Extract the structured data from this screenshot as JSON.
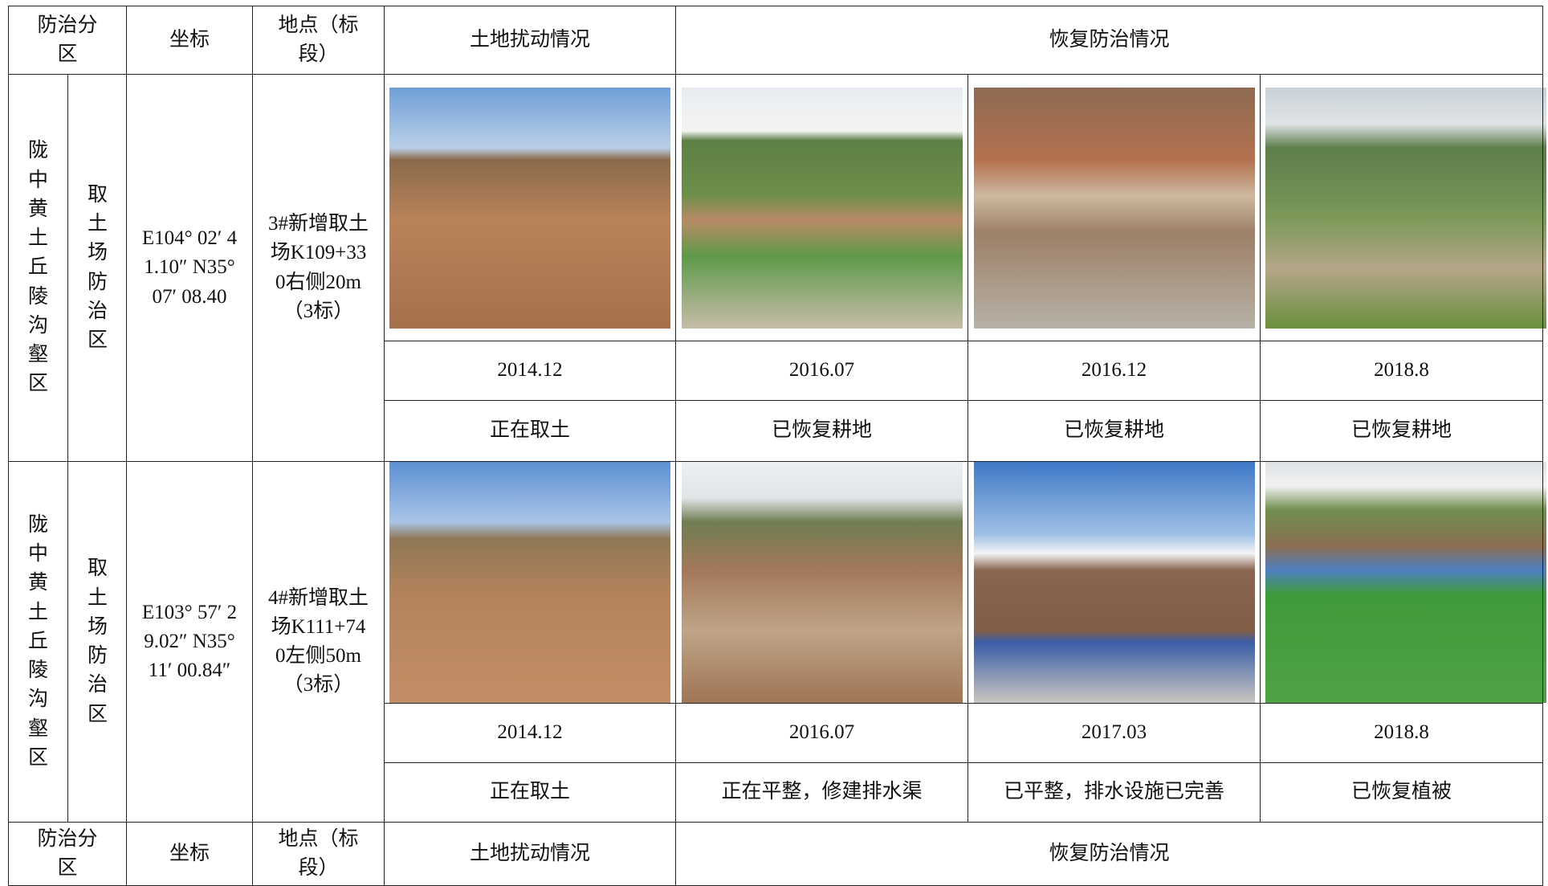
{
  "header": {
    "zone": "防治分区",
    "coord": "坐标",
    "location": "地点（标段）",
    "disturbance": "土地扰动情况",
    "recovery": "恢复防治情况"
  },
  "rows": [
    {
      "zone": "陇中黄土丘陵沟壑区",
      "subzone": "取土场防治区",
      "coord": "E104° 02′ 41.10″ N35° 07′ 08.40",
      "location": "3#新增取土场K109+330右侧20m（3标）",
      "dates": [
        "2014.12",
        "2016.07",
        "2016.12",
        "2018.8"
      ],
      "status": [
        "正在取土",
        "已恢复耕地",
        "已恢复耕地",
        "已恢复耕地"
      ]
    },
    {
      "zone": "陇中黄土丘陵沟壑区",
      "subzone": "取土场防治区",
      "coord": "E103° 57′ 29.02″ N35° 11′ 00.84″",
      "location": "4#新增取土场K111+740左侧50m（3标）",
      "dates": [
        "2014.12",
        "2016.07",
        "2017.03",
        "2018.8"
      ],
      "status": [
        "正在取土",
        "正在平整，修建排水渠",
        "已平整，排水设施已完善",
        "已恢复植被"
      ]
    }
  ]
}
